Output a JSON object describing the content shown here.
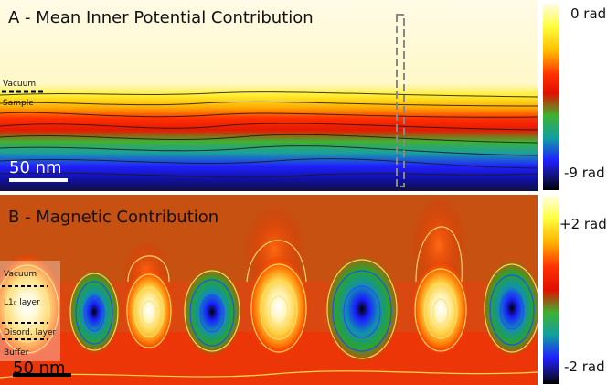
{
  "panel_a": {
    "title": "A - Mean Inner Potential Contribution",
    "vacuum_label": "Vacuum",
    "sample_label": "Sample",
    "scale_bar_label": "50 nm",
    "colorbar_top_label": "0 rad",
    "colorbar_bottom_label": "-9 rad"
  },
  "panel_b": {
    "title": "B - Magnetic Contribution",
    "vacuum_label": "Vacuum",
    "l10_layer_label": "L1₀ layer",
    "disord_layer_label": "Disord. layer",
    "buffer_label": "Buffer",
    "scale_bar_label": "50 nm",
    "colorbar_top_label": "+2 rad",
    "colorbar_bottom_label": "-2 rad"
  },
  "colors": {
    "phase_max": "#fffbe0",
    "yellow": "#ffff00",
    "red": "#ee1c00",
    "green": "#2aa52a",
    "blue": "#1a20ff",
    "phase_min": "#000000",
    "contour_warm": "#ffe070",
    "contour_cool": "#4040ff"
  }
}
